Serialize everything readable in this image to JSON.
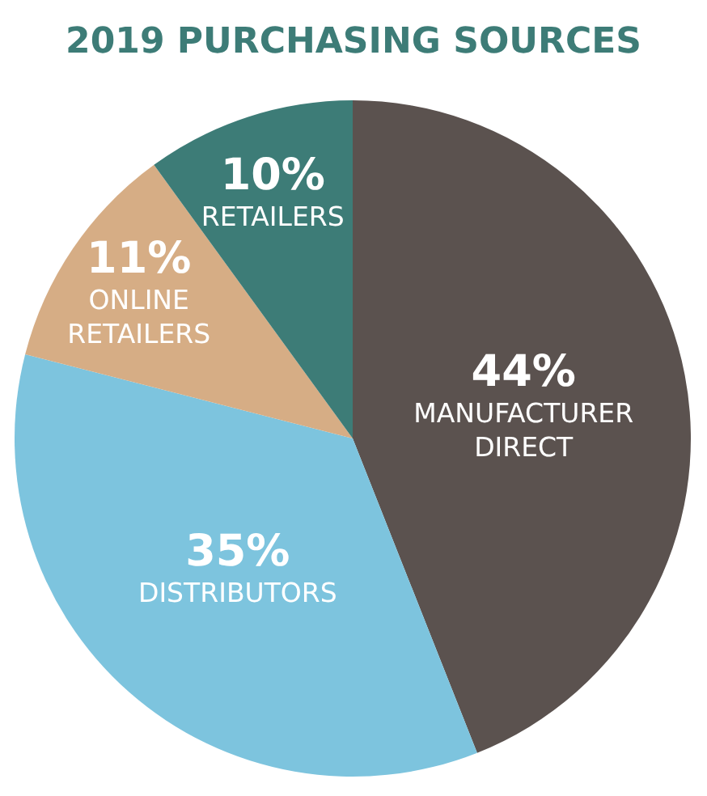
{
  "chart_data": {
    "type": "pie",
    "title": "2019 PURCHASING SOURCES",
    "categories": [
      "MANUFACTURER DIRECT",
      "DISTRIBUTORS",
      "ONLINE RETAILERS",
      "RETAILERS"
    ],
    "values": [
      44,
      35,
      11,
      10
    ],
    "value_labels": [
      "44%",
      "35%",
      "11%",
      "10%"
    ],
    "colors": [
      "#5b524f",
      "#7dc4de",
      "#d6ad85",
      "#3d7c77"
    ]
  }
}
